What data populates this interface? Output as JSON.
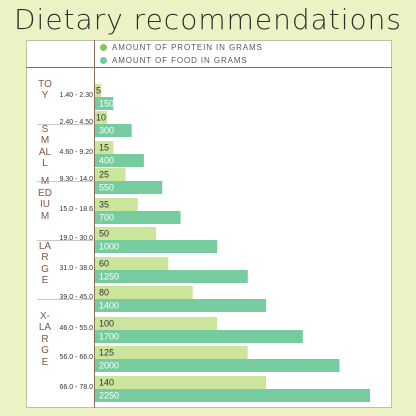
{
  "title": "Dietary recommendations",
  "legend": {
    "protein": "AMOUNT OF PROTEIN IN GRAMS",
    "food": "AMOUNT OF FOOD IN GRAMS"
  },
  "colors": {
    "background": "#ecf2c4",
    "protein": "#cbe59d",
    "food": "#76cc9e",
    "protein_dot": "#87c25a",
    "food_dot": "#6fcaa0",
    "accent": "#8b6e5a"
  },
  "chart_data": {
    "type": "bar",
    "orientation": "horizontal",
    "title": "Dietary recommendations",
    "groups": [
      {
        "name": "TOY",
        "categories": [
          "1.40 - 2.30",
          "2.40 - 4.50"
        ]
      },
      {
        "name": "SMALL",
        "categories": [
          "4.60 - 9.20",
          "9.30 - 14.0"
        ]
      },
      {
        "name": "MEDIUM",
        "categories": [
          "15.0 - 18.6",
          "19.0 - 30.0"
        ]
      },
      {
        "name": "LARGE",
        "categories": [
          "31.0 - 38.0",
          "39.0 - 45.0"
        ]
      },
      {
        "name": "X-LARGE",
        "categories": [
          "46.0 - 55.0",
          "56.0 - 66.0",
          "66.0 - 78.0"
        ]
      }
    ],
    "categories": [
      "1.40 - 2.30",
      "2.40 - 4.50",
      "4.60 - 9.20",
      "9.30 - 14.0",
      "15.0 - 18.6",
      "19.0 - 30.0",
      "31.0 - 38.0",
      "39.0 - 45.0",
      "46.0 - 55.0",
      "56.0 - 66.0",
      "66.0 - 78.0"
    ],
    "series": [
      {
        "name": "AMOUNT OF PROTEIN IN GRAMS",
        "values": [
          5,
          10,
          15,
          25,
          35,
          50,
          60,
          80,
          100,
          125,
          140
        ]
      },
      {
        "name": "AMOUNT OF FOOD IN GRAMS",
        "values": [
          150,
          300,
          400,
          550,
          700,
          1000,
          1250,
          1400,
          1700,
          2000,
          2250
        ]
      }
    ],
    "legend": "top",
    "grid": false
  }
}
